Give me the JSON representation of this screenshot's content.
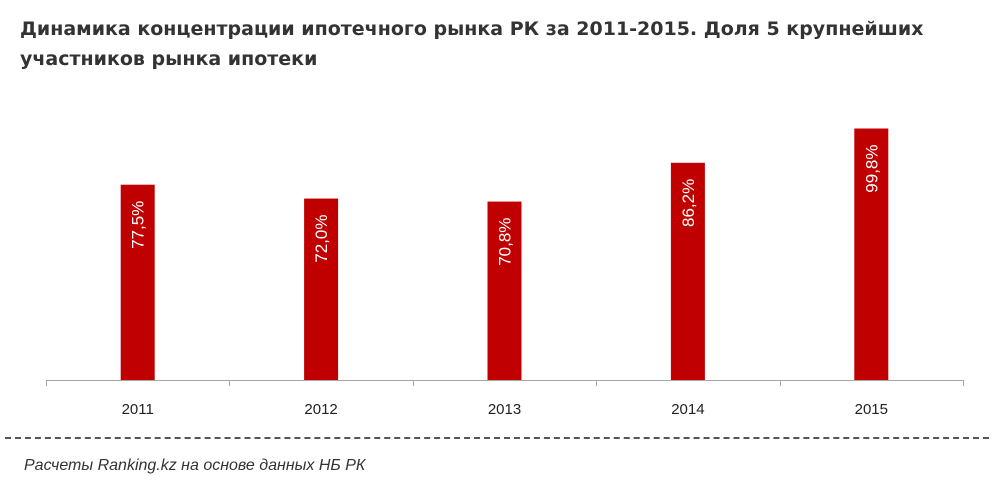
{
  "title_lines": [
    "Динамика  концентрации  ипотечного  рынка РК за 2011-2015. Доля 5 крупнейших",
    "участников  рынка  ипотеки"
  ],
  "source": "Расчеты Ranking.kz на основе данных НБ РК",
  "chart_data": {
    "type": "bar",
    "title": "Динамика  концентрации  ипотечного  рынка РК за 2011-2015. Доля 5 крупнейших участников  рынка  ипотеки",
    "categories": [
      "2011",
      "2012",
      "2013",
      "2014",
      "2015"
    ],
    "values": [
      77.5,
      72.0,
      70.8,
      86.2,
      99.8
    ],
    "data_labels": [
      "77,5%",
      "72,0%",
      "70,8%",
      "86,2%",
      "99,8%"
    ],
    "unit": "%",
    "xlabel": "",
    "ylabel": "",
    "bar_color": "#c00000",
    "label_color": "#ffffff",
    "axis_color": "#a6a6a6",
    "grid": false,
    "legend": "none"
  }
}
